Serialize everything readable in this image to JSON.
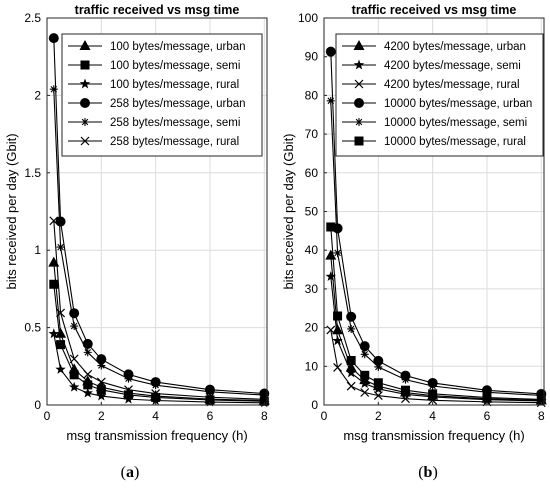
{
  "captions": {
    "a": "a",
    "b": "b"
  },
  "chart_data": [
    {
      "type": "line",
      "title": "traffic received vs msg time",
      "xlabel": "msg transmission frequency (h)",
      "ylabel": "bits received per day (Gbit)",
      "xlim": [
        0,
        8.1
      ],
      "ylim": [
        0,
        2.5
      ],
      "xticks": [
        0,
        2,
        4,
        6,
        8
      ],
      "yticks": [
        0,
        0.5,
        1,
        1.5,
        2,
        2.5
      ],
      "ytick_labels": [
        "0",
        "0.5",
        "1",
        "1.5",
        "2",
        "2.5"
      ],
      "grid": true,
      "legend_position": "top-right",
      "x": [
        0.25,
        0.5,
        1,
        1.5,
        2,
        3,
        4,
        6,
        8
      ],
      "series": [
        {
          "name": "100 bytes/message, urban",
          "marker": "triangle",
          "values": [
            0.92,
            0.46,
            0.23,
            0.153,
            0.115,
            0.077,
            0.058,
            0.038,
            0.029
          ]
        },
        {
          "name": "100 bytes/message, semi",
          "marker": "square",
          "values": [
            0.78,
            0.39,
            0.195,
            0.13,
            0.098,
            0.065,
            0.049,
            0.033,
            0.024
          ]
        },
        {
          "name": "100 bytes/message, rural",
          "marker": "star",
          "values": [
            0.46,
            0.23,
            0.115,
            0.077,
            0.058,
            0.038,
            0.029,
            0.019,
            0.014
          ]
        },
        {
          "name": "258 bytes/message, urban",
          "marker": "circle",
          "values": [
            2.37,
            1.185,
            0.593,
            0.395,
            0.296,
            0.198,
            0.148,
            0.099,
            0.074
          ]
        },
        {
          "name": "258 bytes/message, semi",
          "marker": "asterisk",
          "values": [
            2.04,
            1.02,
            0.51,
            0.34,
            0.255,
            0.17,
            0.128,
            0.085,
            0.064
          ]
        },
        {
          "name": "258 bytes/message, rural",
          "marker": "x",
          "values": [
            1.19,
            0.595,
            0.298,
            0.198,
            0.149,
            0.099,
            0.074,
            0.05,
            0.037
          ]
        }
      ]
    },
    {
      "type": "line",
      "title": "traffic received vs msg time",
      "xlabel": "msg transmission frequency (h)",
      "ylabel": "bits received per day (Gbit)",
      "xlim": [
        0,
        8.1
      ],
      "ylim": [
        0,
        100
      ],
      "xticks": [
        0,
        2,
        4,
        6,
        8
      ],
      "yticks": [
        0,
        10,
        20,
        30,
        40,
        50,
        60,
        70,
        80,
        90,
        100
      ],
      "ytick_labels": [
        "0",
        "10",
        "20",
        "30",
        "40",
        "50",
        "60",
        "70",
        "80",
        "90",
        "100"
      ],
      "grid": true,
      "legend_position": "top-right",
      "x": [
        0.25,
        0.5,
        1,
        1.5,
        2,
        3,
        4,
        6,
        8
      ],
      "series": [
        {
          "name": "4200 bytes/message, urban",
          "marker": "triangle",
          "values": [
            38.6,
            19.3,
            9.65,
            6.43,
            4.83,
            3.22,
            2.41,
            1.61,
            1.21
          ]
        },
        {
          "name": "4200 bytes/message, semi",
          "marker": "star",
          "values": [
            33.2,
            16.6,
            8.3,
            5.53,
            4.15,
            2.77,
            2.08,
            1.38,
            1.04
          ]
        },
        {
          "name": "4200 bytes/message, rural",
          "marker": "x",
          "values": [
            19.4,
            9.7,
            4.85,
            3.23,
            2.43,
            1.62,
            1.21,
            0.81,
            0.61
          ]
        },
        {
          "name": "10000 bytes/message, urban",
          "marker": "circle",
          "values": [
            91.3,
            45.65,
            22.8,
            15.2,
            11.4,
            7.6,
            5.7,
            3.8,
            2.85
          ]
        },
        {
          "name": "10000 bytes/message, semi",
          "marker": "asterisk",
          "values": [
            78.6,
            39.3,
            19.65,
            13.1,
            9.83,
            6.55,
            4.91,
            3.28,
            2.46
          ]
        },
        {
          "name": "10000 bytes/message, rural",
          "marker": "square",
          "values": [
            46.0,
            23.0,
            11.5,
            7.67,
            5.75,
            3.83,
            2.88,
            1.92,
            1.44
          ]
        }
      ]
    }
  ]
}
